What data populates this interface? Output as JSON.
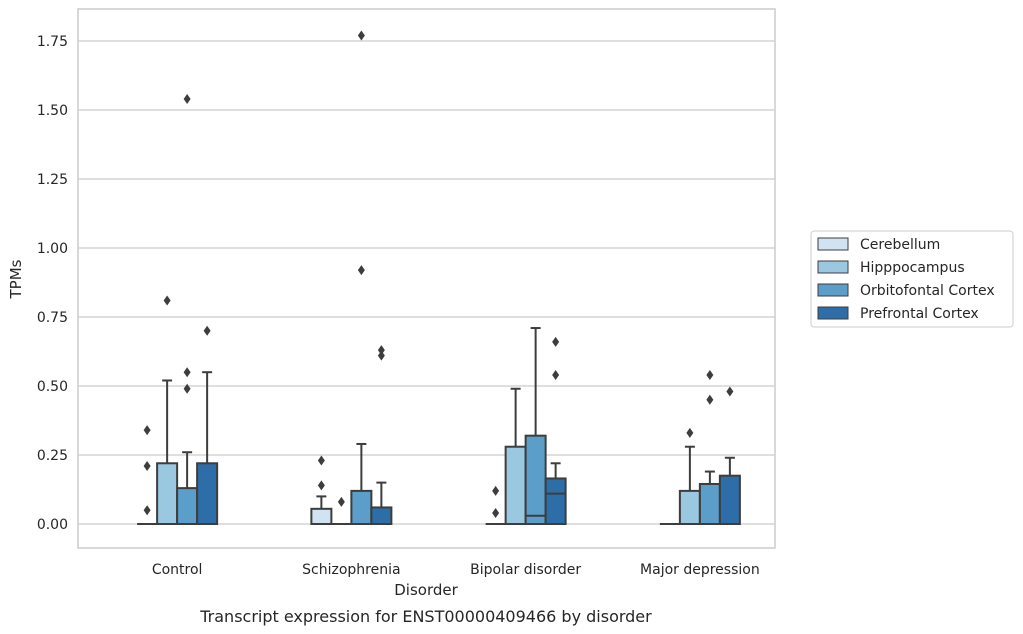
{
  "chart_data": {
    "type": "box",
    "xlabel": "Disorder",
    "ylabel": "TPMs",
    "caption": "Transcript expression for ENST00000409466 by disorder",
    "ylim": [
      -0.085,
      1.86
    ],
    "yticks": [
      "0.00",
      "0.25",
      "0.50",
      "0.75",
      "1.00",
      "1.25",
      "1.50",
      "1.75"
    ],
    "ytick_values": [
      0,
      0.25,
      0.5,
      0.75,
      1.0,
      1.25,
      1.5,
      1.75
    ],
    "grid": "horizontal",
    "legend_position": "right",
    "categories": [
      "Control",
      "Schizophrenia",
      "Bipolar disorder",
      "Major depression"
    ],
    "series": [
      {
        "name": "Cerebellum",
        "color": "#d1e2f2",
        "boxes": [
          {
            "q1": 0,
            "median": 0,
            "q3": 0,
            "whisker_low": 0,
            "whisker_high": 0,
            "outliers": [
              0.05,
              0.21,
              0.34
            ]
          },
          {
            "q1": 0,
            "median": 0,
            "q3": 0.055,
            "whisker_low": 0,
            "whisker_high": 0.1,
            "outliers": [
              0.14,
              0.23
            ]
          },
          {
            "q1": 0,
            "median": 0,
            "q3": 0,
            "whisker_low": 0,
            "whisker_high": 0,
            "outliers": [
              0.04,
              0.12
            ]
          },
          {
            "q1": 0,
            "median": 0,
            "q3": 0,
            "whisker_low": 0,
            "whisker_high": 0,
            "outliers": []
          }
        ]
      },
      {
        "name": "Hipppocampus",
        "color": "#9ac8e0",
        "boxes": [
          {
            "q1": 0,
            "median": 0,
            "q3": 0.22,
            "whisker_low": 0,
            "whisker_high": 0.52,
            "outliers": [
              0.81
            ]
          },
          {
            "q1": 0,
            "median": 0,
            "q3": 0,
            "whisker_low": 0,
            "whisker_high": 0,
            "outliers": [
              0.08
            ]
          },
          {
            "q1": 0,
            "median": 0,
            "q3": 0.28,
            "whisker_low": 0,
            "whisker_high": 0.49,
            "outliers": []
          },
          {
            "q1": 0,
            "median": 0,
            "q3": 0.12,
            "whisker_low": 0,
            "whisker_high": 0.28,
            "outliers": [
              0.33
            ]
          }
        ]
      },
      {
        "name": "Orbitofontal Cortex",
        "color": "#5a9ec9",
        "boxes": [
          {
            "q1": 0,
            "median": 0,
            "q3": 0.13,
            "whisker_low": 0,
            "whisker_high": 0.26,
            "outliers": [
              0.49,
              0.55,
              1.54
            ]
          },
          {
            "q1": 0,
            "median": 0,
            "q3": 0.12,
            "whisker_low": 0,
            "whisker_high": 0.29,
            "outliers": [
              0.92,
              1.77
            ]
          },
          {
            "q1": 0,
            "median": 0.03,
            "q3": 0.32,
            "whisker_low": 0,
            "whisker_high": 0.71,
            "outliers": []
          },
          {
            "q1": 0,
            "median": 0,
            "q3": 0.145,
            "whisker_low": 0,
            "whisker_high": 0.19,
            "outliers": [
              0.45,
              0.54
            ]
          }
        ]
      },
      {
        "name": "Prefrontal Cortex",
        "color": "#2d6ea8",
        "boxes": [
          {
            "q1": 0,
            "median": 0,
            "q3": 0.22,
            "whisker_low": 0,
            "whisker_high": 0.55,
            "outliers": [
              0.7
            ]
          },
          {
            "q1": 0,
            "median": 0,
            "q3": 0.06,
            "whisker_low": 0,
            "whisker_high": 0.15,
            "outliers": [
              0.61,
              0.63
            ]
          },
          {
            "q1": 0,
            "median": 0.11,
            "q3": 0.165,
            "whisker_low": 0,
            "whisker_high": 0.22,
            "outliers": [
              0.54,
              0.66
            ]
          },
          {
            "q1": 0,
            "median": 0,
            "q3": 0.175,
            "whisker_low": 0,
            "whisker_high": 0.24,
            "outliers": [
              0.48
            ]
          }
        ]
      }
    ]
  }
}
